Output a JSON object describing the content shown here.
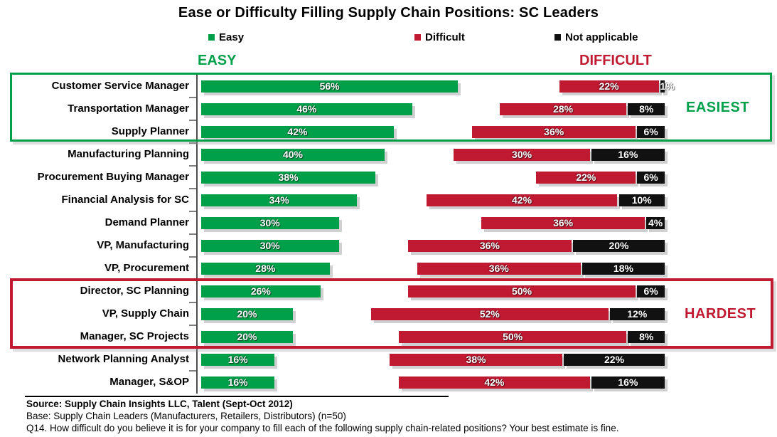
{
  "title": "Ease or Difficulty Filling Supply Chain Positions:  SC Leaders",
  "legend": {
    "items": [
      {
        "label": "Easy",
        "color": "#00A04B"
      },
      {
        "label": "Difficult",
        "color": "#C01A32"
      },
      {
        "label": "Not applicable",
        "color": "#111111"
      }
    ]
  },
  "column_headers": {
    "left": {
      "text": "EASY",
      "color": "#00A04B"
    },
    "right": {
      "text": "DIFFICULT",
      "color": "#C01A32"
    }
  },
  "chart_data": {
    "type": "bar",
    "orientation": "horizontal",
    "value_suffix": "%",
    "title": "Ease or Difficulty Filling Supply Chain Positions:  SC Leaders",
    "categories": [
      "Customer Service Manager",
      "Transportation Manager",
      "Supply Planner",
      "Manufacturing Planning",
      "Procurement Buying Manager",
      "Financial Analysis for SC",
      "Demand Planner",
      "VP, Manufacturing",
      "VP, Procurement",
      "Director, SC Planning",
      "VP, Supply Chain",
      "Manager, SC Projects",
      "Network Planning Analyst",
      "Manager, S&OP"
    ],
    "series": [
      {
        "name": "Easy",
        "color": "#00A04B",
        "values": [
          56,
          46,
          42,
          40,
          38,
          34,
          30,
          30,
          28,
          26,
          20,
          20,
          16,
          16
        ]
      },
      {
        "name": "Difficult",
        "color": "#C01A32",
        "values": [
          22,
          28,
          36,
          30,
          22,
          42,
          36,
          36,
          36,
          50,
          52,
          50,
          38,
          42
        ]
      },
      {
        "name": "Not applicable",
        "color": "#111111",
        "values": [
          1,
          8,
          6,
          16,
          6,
          10,
          4,
          20,
          18,
          6,
          12,
          8,
          22,
          16
        ]
      }
    ],
    "xlim": [
      0,
      100
    ],
    "grid": false,
    "legend_position": "top",
    "layout_note": "Easy bars grow right from center axis; Difficult + Not applicable bars are right-aligned as a pair",
    "highlight_groups": [
      {
        "label": "EASIEST",
        "rows": [
          0,
          2
        ],
        "color": "#00A04B"
      },
      {
        "label": "HARDEST",
        "rows": [
          9,
          11
        ],
        "color": "#C01A32"
      }
    ]
  },
  "footer": {
    "source": "Source:  Supply Chain Insights LLC, Talent (Sept-Oct 2012)",
    "base": "Base:  Supply Chain Leaders (Manufacturers, Retailers, Distributors) (n=50)",
    "q14": "Q14. How difficult do you believe it is for your company to fill each of the following supply chain-related positions? Your best estimate is fine."
  }
}
